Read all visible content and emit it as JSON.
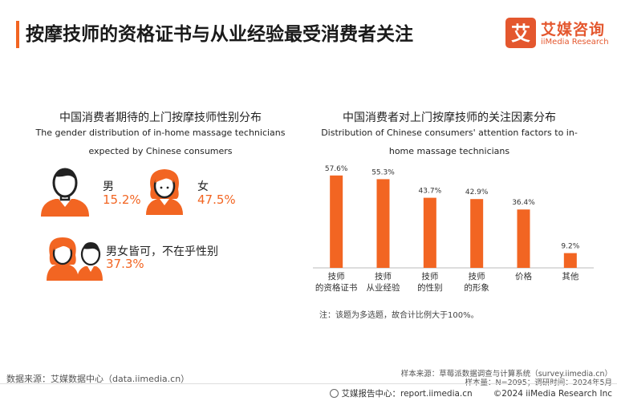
{
  "header": {
    "title": "按摩技师的资格证书与从业经验最受消费者关注",
    "logo_cn": "艾媒咨询",
    "logo_en": "iiMedia Research",
    "logo_glyph": "艾",
    "accent_color": "#f26522"
  },
  "gender_panel": {
    "title": "中国消费者期待的上门按摩技师性别分布",
    "subtitle": "The gender distribution of in-home massage technicians expected by Chinese consumers",
    "items": [
      {
        "label": "男",
        "value": "15.2%",
        "icon": "male-avatar-icon"
      },
      {
        "label": "女",
        "value": "47.5%",
        "icon": "female-avatar-icon"
      },
      {
        "label": "男女皆可，不在乎性别",
        "value": "37.3%",
        "icon": "couple-avatar-icon"
      }
    ]
  },
  "factor_panel": {
    "title": "中国消费者对上门按摩技师的关注因素分布",
    "subtitle": "Distribution of Chinese consumers' attention factors to in-home massage technicians",
    "note": "注：该题为多选题，故合计比例大于100%。"
  },
  "chart_data": {
    "type": "bar",
    "title": "中国消费者对上门按摩技师的关注因素分布",
    "categories": [
      [
        "技师",
        "的资格证书"
      ],
      [
        "技师",
        "从业经验"
      ],
      [
        "技师",
        "的性别"
      ],
      [
        "技师",
        "的形象"
      ],
      [
        "价格"
      ],
      [
        "其他"
      ]
    ],
    "values": [
      57.6,
      55.3,
      43.7,
      42.9,
      36.4,
      9.2
    ],
    "value_labels": [
      "57.6%",
      "55.3%",
      "43.7%",
      "42.9%",
      "36.4%",
      "9.2%"
    ],
    "ylim": [
      0,
      60
    ],
    "grid": false,
    "bar_color": "#f26522"
  },
  "footer": {
    "source_left": "数据来源：艾媒数据中心（data.iimedia.cn）",
    "sample_source": "样本来源：草莓派数据调查与计算系统（survey.iimedia.cn）",
    "sample_size": "样本量：N=2095；调研时间：2024年5月",
    "report_center": "艾媒报告中心：report.iimedia.cn",
    "copyright": "©2024  iiMedia Research  Inc"
  }
}
